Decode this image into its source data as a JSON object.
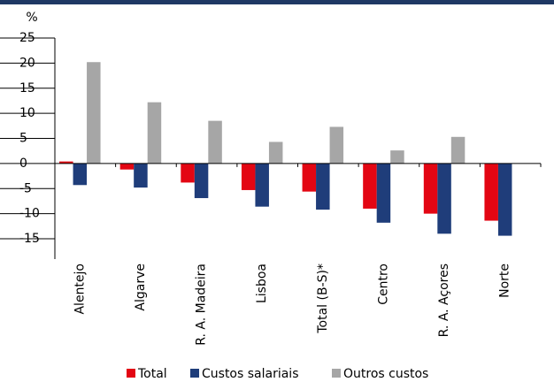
{
  "chart_data": {
    "type": "bar",
    "y_label": "%",
    "categories": [
      "Alentejo",
      "Algarve",
      "R. A. Madeira",
      "Lisboa",
      "Total (B-S)*",
      "Centro",
      "R. A. Açores",
      "Norte"
    ],
    "series": [
      {
        "name": "Total",
        "color": "#e30613",
        "values": [
          0.4,
          -1.2,
          -3.8,
          -5.3,
          -5.6,
          -9.0,
          -10.0,
          -11.4
        ]
      },
      {
        "name": "Custos salariais",
        "color": "#1f3d7a",
        "values": [
          -4.3,
          -4.8,
          -6.9,
          -8.6,
          -9.2,
          -11.8,
          -14.0,
          -14.4
        ]
      },
      {
        "name": "Outros custos",
        "color": "#a6a6a6",
        "values": [
          20.2,
          12.2,
          8.5,
          4.3,
          7.3,
          2.6,
          5.3,
          0
        ]
      }
    ],
    "ylim": [
      -15,
      25
    ],
    "yticks": [
      -15,
      -10,
      -5,
      0,
      5,
      10,
      15,
      20,
      25
    ],
    "grid": false
  }
}
